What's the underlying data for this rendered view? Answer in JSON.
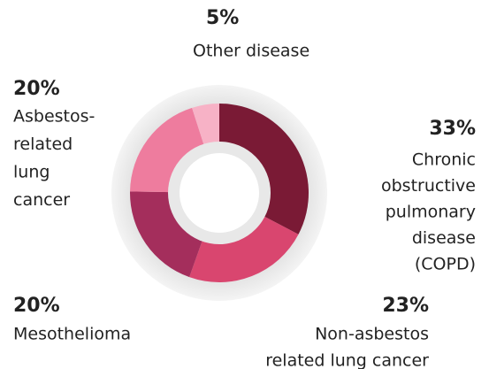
{
  "chart_data": {
    "type": "donut",
    "slices": [
      {
        "label_lines": [
          "Chronic",
          "obstructive",
          "pulmonary",
          "disease",
          "(COPD)"
        ],
        "value": 33,
        "value_label": "33%",
        "color": "#7a1a35"
      },
      {
        "label_lines": [
          "Non-asbestos",
          "related lung cancer"
        ],
        "value": 23,
        "value_label": "23%",
        "color": "#d9466f"
      },
      {
        "label_lines": [
          "Mesothelioma"
        ],
        "value": 20,
        "value_label": "20%",
        "color": "#a42e5c"
      },
      {
        "label_lines": [
          "Asbestos-",
          "related",
          "lung",
          "cancer"
        ],
        "value": 20,
        "value_label": "20%",
        "color": "#ee7c9e"
      },
      {
        "label_lines": [
          "Other disease"
        ],
        "value": 5,
        "value_label": "5%",
        "color": "#f7b2c6"
      }
    ]
  }
}
